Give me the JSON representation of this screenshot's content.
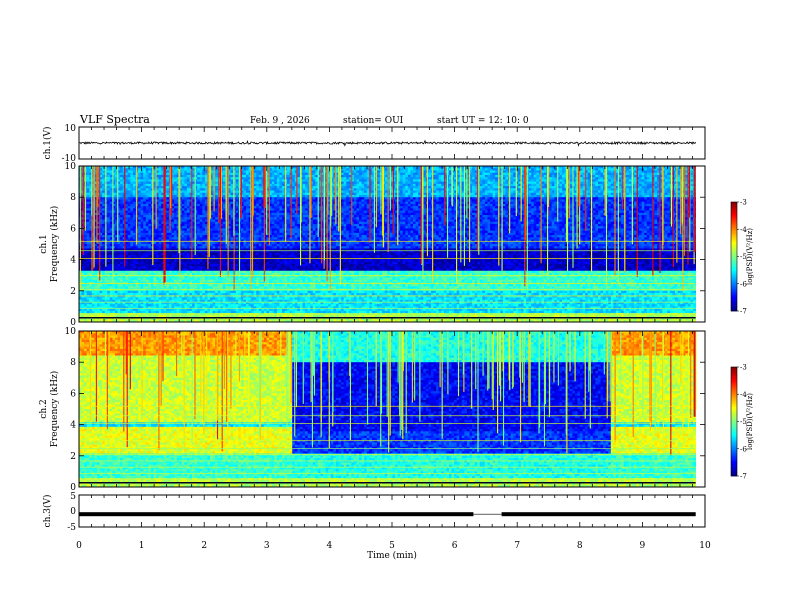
{
  "header": {
    "title": "VLF Spectra",
    "date": "Feb. 9 , 2026",
    "station": "station= OUI",
    "start": "start UT = 12: 10: 0"
  },
  "chart_data": [
    {
      "id": "ch1-waveform",
      "type": "line",
      "ylabel": "ch.1(V)",
      "ylim": [
        -10,
        10
      ],
      "yticks": [
        "10",
        "-10"
      ],
      "series": [
        {
          "description": "waveform amplitude",
          "mean": 0,
          "approx_range": [
            -1,
            1
          ]
        }
      ],
      "color": "#000000"
    },
    {
      "id": "ch1-spectrogram",
      "type": "heatmap",
      "ylabel": "ch.1\nFrequency (kHz)",
      "ylabel_lines": [
        "ch.1",
        "Frequency (kHz)"
      ],
      "ylim": [
        0,
        10
      ],
      "yticks": [
        "0",
        "2",
        "4",
        "6",
        "8",
        "10"
      ],
      "colorbar": {
        "label": "log(PSD)(V²/Hz)",
        "range": [
          -7,
          -3
        ],
        "ticks": [
          "-3",
          "-4",
          "-5",
          "-6",
          "-7"
        ]
      },
      "bands_log_psd": [
        {
          "f_khz": [
            0,
            0.6
          ],
          "value": -4.8
        },
        {
          "f_khz": [
            0.6,
            2.0
          ],
          "value": -5.6
        },
        {
          "f_khz": [
            2.0,
            3.3
          ],
          "value": -5.3
        },
        {
          "f_khz": [
            3.3,
            4.7
          ],
          "value": -6.7
        },
        {
          "f_khz": [
            4.7,
            8.0
          ],
          "value": -6.3
        },
        {
          "f_khz": [
            8.0,
            10.0
          ],
          "value": -5.8
        }
      ]
    },
    {
      "id": "ch2-spectrogram",
      "type": "heatmap",
      "ylabel": "ch.2\nFrequency (kHz)",
      "ylabel_lines": [
        "ch.2",
        "Frequency (kHz)"
      ],
      "ylim": [
        0,
        10
      ],
      "yticks": [
        "0",
        "2",
        "4",
        "6",
        "8",
        "10"
      ],
      "colorbar": {
        "label": "log(PSD)(V²/Hz)",
        "range": [
          -7,
          -3
        ],
        "ticks": [
          "-3",
          "-4",
          "-5",
          "-6",
          "-7"
        ]
      },
      "quiet_interval_min": [
        3.4,
        8.5
      ]
    },
    {
      "id": "ch3-waveform",
      "type": "line",
      "ylabel": "ch.3(V)",
      "ylim": [
        -5,
        5
      ],
      "yticks": [
        "5",
        "0",
        "-5"
      ],
      "series": [
        {
          "description": "constant level",
          "value": -1
        }
      ],
      "gap_min": [
        6.3,
        6.75
      ],
      "color": "#000000"
    }
  ],
  "x_axis": {
    "label": "Time (min)",
    "range": [
      0,
      10
    ],
    "ticks": [
      "0",
      "1",
      "2",
      "3",
      "4",
      "5",
      "6",
      "7",
      "8",
      "9",
      "10"
    ],
    "data_end_min": 9.85
  }
}
